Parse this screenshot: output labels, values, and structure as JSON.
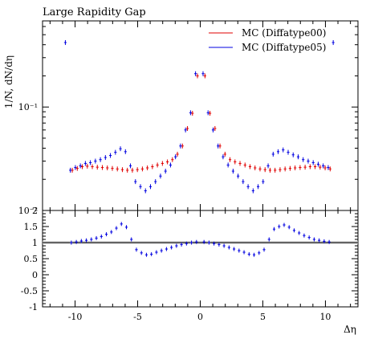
{
  "chart_data": [
    {
      "type": "scatter",
      "title": "Large Rapidity Gap",
      "ylabel": "1/N, dN/dη",
      "xlabel": "",
      "xlim": [
        -12.6,
        12.6
      ],
      "ylim": [
        0.01,
        0.68
      ],
      "yscale": "log",
      "y_ticks": [
        {
          "value": 0.1,
          "label": "10⁻¹"
        },
        {
          "value": 0.01,
          "label": "10⁻²"
        }
      ],
      "legend": {
        "placement": "top-right"
      },
      "series": [
        {
          "name": "MC (Diffatype00)",
          "color": "#e00000",
          "points": [
            [
              -10.3,
              0.0245
            ],
            [
              -9.9,
              0.0255
            ],
            [
              -9.5,
              0.0265
            ],
            [
              -9.1,
              0.0268
            ],
            [
              -8.7,
              0.0265
            ],
            [
              -8.3,
              0.0262
            ],
            [
              -7.9,
              0.026
            ],
            [
              -7.5,
              0.0258
            ],
            [
              -7.1,
              0.0255
            ],
            [
              -6.7,
              0.0252
            ],
            [
              -6.3,
              0.0248
            ],
            [
              -5.9,
              0.0245
            ],
            [
              -5.5,
              0.0245
            ],
            [
              -5.1,
              0.0248
            ],
            [
              -4.7,
              0.0252
            ],
            [
              -4.3,
              0.0258
            ],
            [
              -3.9,
              0.0265
            ],
            [
              -3.5,
              0.0275
            ],
            [
              -3.1,
              0.0285
            ],
            [
              -2.7,
              0.0295
            ],
            [
              -2.3,
              0.031
            ],
            [
              -1.9,
              0.035
            ],
            [
              -1.5,
              0.042
            ],
            [
              -1.1,
              0.062
            ],
            [
              -0.7,
              0.087
            ],
            [
              -0.3,
              0.2
            ],
            [
              0.3,
              0.2
            ],
            [
              0.7,
              0.087
            ],
            [
              1.1,
              0.062
            ],
            [
              1.5,
              0.042
            ],
            [
              1.9,
              0.035
            ],
            [
              2.3,
              0.031
            ],
            [
              2.7,
              0.0295
            ],
            [
              3.1,
              0.0285
            ],
            [
              3.5,
              0.0275
            ],
            [
              3.9,
              0.0265
            ],
            [
              4.3,
              0.0258
            ],
            [
              4.7,
              0.0252
            ],
            [
              5.1,
              0.0248
            ],
            [
              5.5,
              0.0245
            ],
            [
              5.9,
              0.0245
            ],
            [
              6.3,
              0.0248
            ],
            [
              6.7,
              0.0252
            ],
            [
              7.1,
              0.0255
            ],
            [
              7.5,
              0.0258
            ],
            [
              7.9,
              0.026
            ],
            [
              8.3,
              0.0262
            ],
            [
              8.7,
              0.0265
            ],
            [
              9.1,
              0.0265
            ],
            [
              9.5,
              0.0262
            ],
            [
              9.9,
              0.0258
            ],
            [
              10.3,
              0.0252
            ]
          ]
        },
        {
          "name": "MC (Diffatype05)",
          "color": "#0000e0",
          "points": [
            [
              -10.3,
              0.0245
            ],
            [
              -9.9,
              0.026
            ],
            [
              -9.5,
              0.027
            ],
            [
              -9.1,
              0.0285
            ],
            [
              -8.7,
              0.029
            ],
            [
              -8.3,
              0.03
            ],
            [
              -7.9,
              0.031
            ],
            [
              -7.5,
              0.0325
            ],
            [
              -7.1,
              0.034
            ],
            [
              -6.7,
              0.0365
            ],
            [
              -6.3,
              0.0395
            ],
            [
              -5.9,
              0.037
            ],
            [
              -5.5,
              0.027
            ],
            [
              -5.1,
              0.019
            ],
            [
              -4.7,
              0.017
            ],
            [
              -4.3,
              0.0155
            ],
            [
              -3.9,
              0.017
            ],
            [
              -3.5,
              0.019
            ],
            [
              -3.1,
              0.0215
            ],
            [
              -2.7,
              0.024
            ],
            [
              -2.3,
              0.0275
            ],
            [
              -1.9,
              0.033
            ],
            [
              -1.5,
              0.042
            ],
            [
              -1.1,
              0.06
            ],
            [
              -0.7,
              0.088
            ],
            [
              -0.3,
              0.21
            ],
            [
              0.3,
              0.21
            ],
            [
              0.7,
              0.088
            ],
            [
              1.1,
              0.06
            ],
            [
              1.5,
              0.042
            ],
            [
              1.9,
              0.033
            ],
            [
              2.3,
              0.0275
            ],
            [
              2.7,
              0.024
            ],
            [
              3.1,
              0.0215
            ],
            [
              3.5,
              0.019
            ],
            [
              3.9,
              0.017
            ],
            [
              4.3,
              0.0155
            ],
            [
              4.7,
              0.017
            ],
            [
              5.1,
              0.019
            ],
            [
              5.5,
              0.027
            ],
            [
              5.9,
              0.035
            ],
            [
              6.3,
              0.037
            ],
            [
              6.7,
              0.0385
            ],
            [
              7.1,
              0.0365
            ],
            [
              7.5,
              0.0345
            ],
            [
              7.9,
              0.033
            ],
            [
              8.3,
              0.031
            ],
            [
              8.7,
              0.03
            ],
            [
              9.1,
              0.029
            ],
            [
              9.5,
              0.028
            ],
            [
              9.9,
              0.027
            ],
            [
              10.3,
              0.026
            ]
          ],
          "outliers": [
            [
              -10.7,
              0.42
            ],
            [
              10.7,
              0.42
            ]
          ]
        }
      ]
    },
    {
      "type": "scatter",
      "title": "",
      "xlabel": "Δη",
      "ylabel": "",
      "xlim": [
        -12.6,
        12.6
      ],
      "ylim": [
        -1,
        2
      ],
      "x_ticks": [
        -10,
        -5,
        0,
        5,
        10
      ],
      "y_ticks": [
        -1,
        -0.5,
        0,
        0.5,
        1,
        1.5,
        2
      ],
      "reference_line": 1,
      "reference_band": [
        0.96,
        1.04
      ],
      "series": [
        {
          "name": "",
          "color": "#0000e0",
          "points": [
            [
              -10.3,
              1.0
            ],
            [
              -9.9,
              1.02
            ],
            [
              -9.5,
              1.05
            ],
            [
              -9.1,
              1.07
            ],
            [
              -8.7,
              1.1
            ],
            [
              -8.3,
              1.14
            ],
            [
              -7.9,
              1.19
            ],
            [
              -7.5,
              1.26
            ],
            [
              -7.1,
              1.33
            ],
            [
              -6.7,
              1.45
            ],
            [
              -6.3,
              1.58
            ],
            [
              -5.9,
              1.48
            ],
            [
              -5.5,
              1.1
            ],
            [
              -5.1,
              0.78
            ],
            [
              -4.7,
              0.68
            ],
            [
              -4.3,
              0.62
            ],
            [
              -3.9,
              0.64
            ],
            [
              -3.5,
              0.7
            ],
            [
              -3.1,
              0.75
            ],
            [
              -2.7,
              0.8
            ],
            [
              -2.3,
              0.85
            ],
            [
              -1.9,
              0.9
            ],
            [
              -1.5,
              0.94
            ],
            [
              -1.1,
              0.97
            ],
            [
              -0.7,
              1.0
            ],
            [
              -0.3,
              1.02
            ],
            [
              0.3,
              1.02
            ],
            [
              0.7,
              1.0
            ],
            [
              1.1,
              0.97
            ],
            [
              1.5,
              0.94
            ],
            [
              1.9,
              0.9
            ],
            [
              2.3,
              0.85
            ],
            [
              2.7,
              0.8
            ],
            [
              3.1,
              0.75
            ],
            [
              3.5,
              0.7
            ],
            [
              3.9,
              0.64
            ],
            [
              4.3,
              0.62
            ],
            [
              4.7,
              0.68
            ],
            [
              5.1,
              0.78
            ],
            [
              5.5,
              1.1
            ],
            [
              5.9,
              1.42
            ],
            [
              6.3,
              1.5
            ],
            [
              6.7,
              1.55
            ],
            [
              7.1,
              1.48
            ],
            [
              7.5,
              1.38
            ],
            [
              7.9,
              1.3
            ],
            [
              8.3,
              1.22
            ],
            [
              8.7,
              1.16
            ],
            [
              9.1,
              1.1
            ],
            [
              9.5,
              1.07
            ],
            [
              9.9,
              1.04
            ],
            [
              10.3,
              1.02
            ]
          ]
        }
      ]
    }
  ]
}
